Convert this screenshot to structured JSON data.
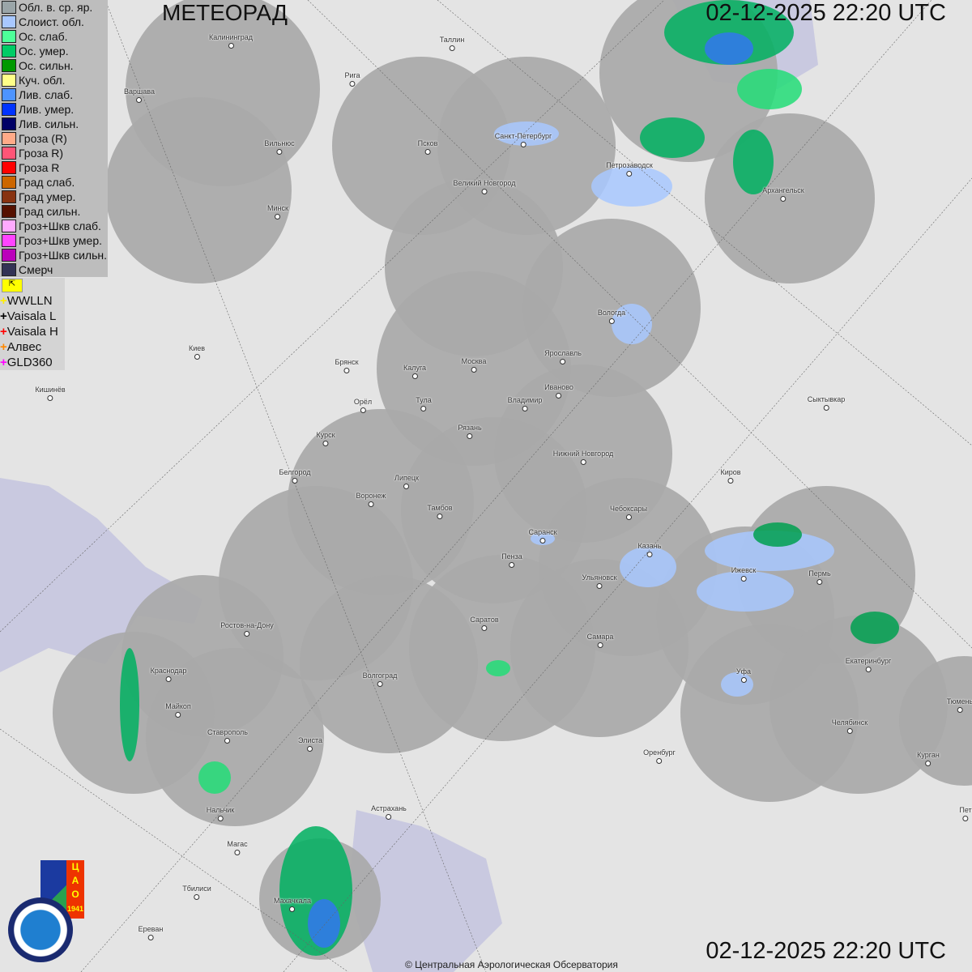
{
  "header": {
    "title": "МЕТЕОРАД",
    "timestamp": "02-12-2025  22:20 UTC"
  },
  "footer": {
    "timestamp": "02-12-2025  22:20 UTC",
    "copyright": "© Центральная Аэрологическая Обсерватория"
  },
  "legend": [
    {
      "label": "Обл. в. ср. яр.",
      "color": "#9aa5a8"
    },
    {
      "label": "Слоист. обл.",
      "color": "#a8c8ff"
    },
    {
      "label": "Ос. слаб.",
      "color": "#4dff99"
    },
    {
      "label": "Ос. умер.",
      "color": "#00cc66"
    },
    {
      "label": "Ос. сильн.",
      "color": "#009900"
    },
    {
      "label": "Куч. обл.",
      "color": "#ffff88"
    },
    {
      "label": "Лив. слаб.",
      "color": "#4d94ff"
    },
    {
      "label": "Лив. умер.",
      "color": "#0033ff"
    },
    {
      "label": "Лив. сильн.",
      "color": "#000066"
    },
    {
      "label": "Гроза (R)",
      "color": "#ffaa88"
    },
    {
      "label": "Гроза R)",
      "color": "#ff5577"
    },
    {
      "label": "Гроза R",
      "color": "#ff0000"
    },
    {
      "label": "Град слаб.",
      "color": "#cc6600"
    },
    {
      "label": "Град умер.",
      "color": "#883311"
    },
    {
      "label": "Град сильн.",
      "color": "#551100"
    },
    {
      "label": "Гроз+Шкв слаб.",
      "color": "#ffaaff"
    },
    {
      "label": "Гроз+Шкв умер.",
      "color": "#ff44ff"
    },
    {
      "label": "Гроз+Шкв сильн.",
      "color": "#bb00bb"
    },
    {
      "label": "Смерч",
      "color": "#333355"
    }
  ],
  "lightning": [
    {
      "label": "WWLLN",
      "color": "#ffee00"
    },
    {
      "label": "Vaisala L",
      "color": "#000000"
    },
    {
      "label": "Vaisala H",
      "color": "#ff0000"
    },
    {
      "label": "Алвес",
      "color": "#ff8800"
    },
    {
      "label": "GLD360",
      "color": "#ff00ff"
    }
  ],
  "logos": {
    "cao": "ЦАО 1941",
    "roshydromet": "РОСГИДРОМЕТ ROSHYDROMET"
  },
  "cities": [
    "Калининград",
    "Таллин",
    "Рига",
    "Варшава",
    "Вильнюс",
    "Псков",
    "Санкт-Петербург",
    "Петрозаводск",
    "Архангельск",
    "Великий Новгород",
    "Минск",
    "Вологда",
    "Киев",
    "Брянск",
    "Калуга",
    "Москва",
    "Ярославль",
    "Иваново",
    "Кишинёв",
    "Орёл",
    "Тула",
    "Владимир",
    "Сыктывкар",
    "Рязань",
    "Курск",
    "Нижний Новгород",
    "Белгород",
    "Липецк",
    "Киров",
    "Воронеж",
    "Тамбов",
    "Чебоксары",
    "Саранск",
    "Казань",
    "Пенза",
    "Ижевск",
    "Пермь",
    "Ульяновск",
    "Ростов-на-Дону",
    "Саратов",
    "Самара",
    "Екатеринбург",
    "Краснодар",
    "Уфа",
    "Волгоград",
    "Майкоп",
    "Тюмень",
    "Челябинск",
    "Ставрополь",
    "Элиста",
    "Оренбург",
    "Курган",
    "Астрахань",
    "Нальчик",
    "Пет",
    "Магас",
    "Тбилиси",
    "Махачкала",
    "Ереван"
  ]
}
